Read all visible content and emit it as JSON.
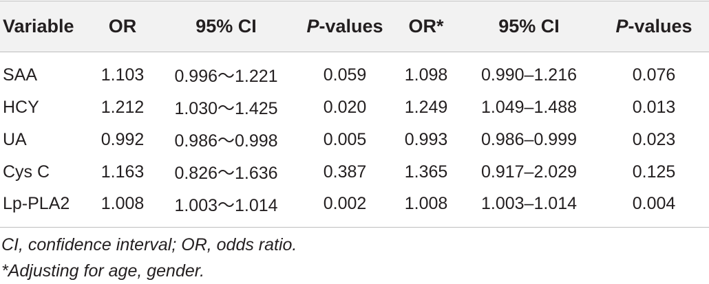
{
  "table": {
    "headers": {
      "variable": "Variable",
      "or": "OR",
      "ci": "95% CI",
      "p_prefix": "P",
      "p_suffix": "-values",
      "or_adj": "OR*",
      "ci_adj": "95% CI",
      "p_adj_prefix": "P",
      "p_adj_suffix": "-values"
    },
    "rows": [
      {
        "variable": "SAA",
        "or": "1.103",
        "ci": "0.996～1.221",
        "p": "0.059",
        "or_adj": "1.098",
        "ci_adj": "0.990–1.216",
        "p_adj": "0.076"
      },
      {
        "variable": "HCY",
        "or": "1.212",
        "ci": "1.030～1.425",
        "p": "0.020",
        "or_adj": "1.249",
        "ci_adj": "1.049–1.488",
        "p_adj": "0.013"
      },
      {
        "variable": "UA",
        "or": "0.992",
        "ci": "0.986～0.998",
        "p": "0.005",
        "or_adj": "0.993",
        "ci_adj": "0.986–0.999",
        "p_adj": "0.023"
      },
      {
        "variable": "Cys C",
        "or": "1.163",
        "ci": "0.826～1.636",
        "p": "0.387",
        "or_adj": "1.365",
        "ci_adj": "0.917–2.029",
        "p_adj": "0.125"
      },
      {
        "variable": "Lp-PLA2",
        "or": "1.008",
        "ci": "1.003～1.014",
        "p": "0.002",
        "or_adj": "1.008",
        "ci_adj": "1.003–1.014",
        "p_adj": "0.004"
      }
    ]
  },
  "footnotes": {
    "line1": "CI, confidence interval; OR, odds ratio.",
    "line2": "*Adjusting for age, gender."
  }
}
